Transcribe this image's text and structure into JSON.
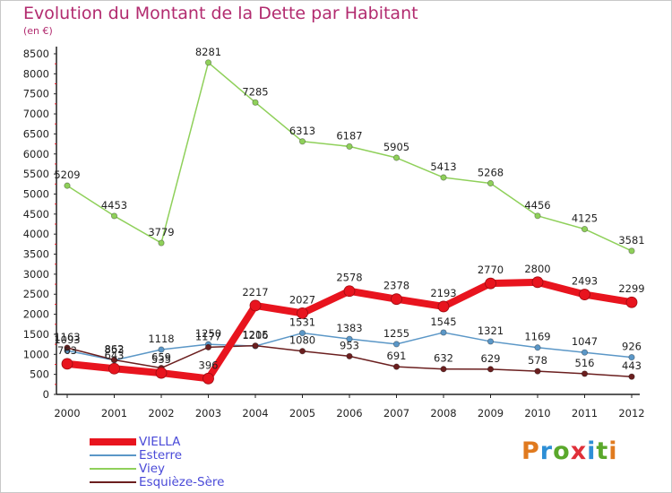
{
  "header": {
    "title": "Evolution du Montant de la Dette par Habitant",
    "subtitle": "(en €)"
  },
  "logo": {
    "text": "Proxiti",
    "colors": [
      "#e07a1f",
      "#2d8fd6",
      "#5aa82b",
      "#e0303a",
      "#2d8fd6",
      "#5aa82b",
      "#e07a1f"
    ]
  },
  "chart_data": {
    "type": "line",
    "x": [
      "2000",
      "2001",
      "2002",
      "2003",
      "2004",
      "2005",
      "2006",
      "2007",
      "2008",
      "2009",
      "2010",
      "2011",
      "2012"
    ],
    "ylim": [
      0,
      8500
    ],
    "yticks": [
      0,
      500,
      1000,
      1500,
      2000,
      2500,
      3000,
      3500,
      4000,
      4500,
      5000,
      5500,
      6000,
      6500,
      7000,
      7500,
      8000,
      8500
    ],
    "grid": false,
    "legend": "bottom-left",
    "series": [
      {
        "name": "VIELLA",
        "color": "#e8141e",
        "emphasis": true,
        "values": [
          763,
          643,
          535,
          396,
          2217,
          2027,
          2578,
          2378,
          2193,
          2770,
          2800,
          2493,
          2299
        ]
      },
      {
        "name": "Esterre",
        "color": "#5b97c7",
        "emphasis": false,
        "values": [
          1093,
          853,
          1118,
          1250,
          1206,
          1531,
          1383,
          1255,
          1545,
          1321,
          1169,
          1047,
          926
        ]
      },
      {
        "name": "Viey",
        "color": "#8fd05a",
        "emphasis": false,
        "values": [
          5209,
          4453,
          3779,
          8281,
          7285,
          6313,
          6187,
          5905,
          5413,
          5268,
          4456,
          4125,
          3581
        ]
      },
      {
        "name": "Esquièze-Sère",
        "color": "#6b1f1f",
        "emphasis": false,
        "values": [
          1163,
          862,
          659,
          1177,
          1215,
          1080,
          953,
          691,
          632,
          629,
          578,
          516,
          443
        ]
      }
    ]
  }
}
